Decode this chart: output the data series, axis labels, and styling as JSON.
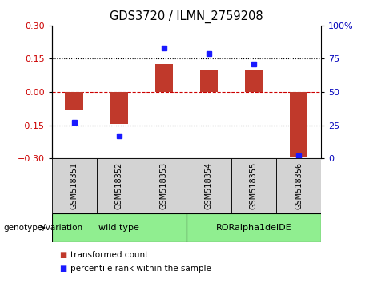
{
  "title": "GDS3720 / ILMN_2759208",
  "samples": [
    "GSM518351",
    "GSM518352",
    "GSM518353",
    "GSM518354",
    "GSM518355",
    "GSM518356"
  ],
  "bar_values": [
    -0.08,
    -0.145,
    0.125,
    0.1,
    0.1,
    -0.295
  ],
  "dot_values": [
    27,
    17,
    83,
    79,
    71,
    2
  ],
  "ylim_left": [
    -0.3,
    0.3
  ],
  "ylim_right": [
    0,
    100
  ],
  "yticks_left": [
    -0.3,
    -0.15,
    0.0,
    0.15,
    0.3
  ],
  "yticks_right": [
    0,
    25,
    50,
    75,
    100
  ],
  "bar_color": "#c0392b",
  "dot_color": "#1a1aff",
  "hline_color": "#cc0000",
  "group1_label": "wild type",
  "group2_label": "RORalpha1delDE",
  "group_color": "#90ee90",
  "genotype_label": "genotype/variation",
  "legend_bar_label": "transformed count",
  "legend_dot_label": "percentile rank within the sample",
  "background_color": "#ffffff",
  "tick_label_color_left": "#cc0000",
  "tick_label_color_right": "#0000bb",
  "title_fontsize": 10.5,
  "tick_fontsize": 8,
  "sample_fontsize": 7,
  "legend_fontsize": 7.5,
  "genotype_fontsize": 7.5,
  "group_fontsize": 8
}
